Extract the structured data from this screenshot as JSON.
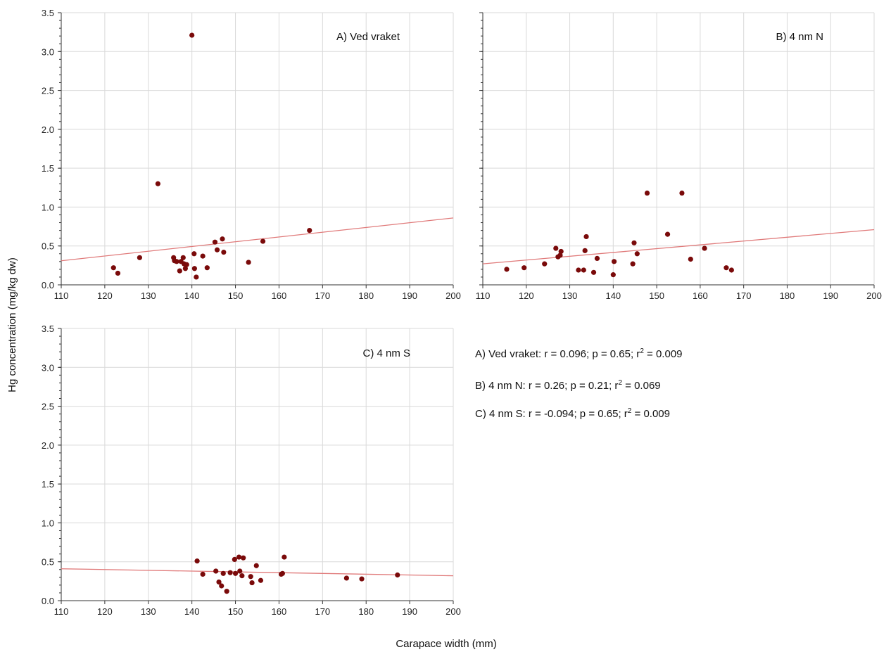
{
  "figure": {
    "y_axis_title": "Hg concentration (mg/kg dw)",
    "x_axis_title": "Carapace width (mm)"
  },
  "stats": {
    "a_prefix": "A) Ved vraket:  r =  0.096; p = 0.65; r",
    "a_suffix": " = 0.009",
    "b_prefix": "B) 4 nm N:  r =  0.26; p = 0.21; r",
    "b_suffix": " = 0.069",
    "c_prefix": "C) 4 nm S:  r = -0.094; p = 0.65; r",
    "c_suffix": " = 0.009",
    "sup": "2"
  },
  "colors": {
    "point": "#7a0a0a",
    "line": "#e07a7a",
    "grid": "#d9d9d9",
    "axis": "#333333"
  },
  "chart_data": [
    {
      "type": "scatter",
      "title": "A) Ved vraket",
      "xlim": [
        110,
        200
      ],
      "ylim": [
        0,
        3.5
      ],
      "x_ticks": [
        "110",
        "120",
        "130",
        "140",
        "150",
        "160",
        "170",
        "180",
        "190",
        "200"
      ],
      "y_ticks": [
        "0.0",
        "0.5",
        "1.0",
        "1.5",
        "2.0",
        "2.5",
        "3.0",
        "3.5"
      ],
      "grid": true,
      "points": [
        [
          122.0,
          0.22
        ],
        [
          123.0,
          0.15
        ],
        [
          128.0,
          0.35
        ],
        [
          132.2,
          1.3
        ],
        [
          135.8,
          0.35
        ],
        [
          136.0,
          0.31
        ],
        [
          136.5,
          0.3
        ],
        [
          137.2,
          0.18
        ],
        [
          137.5,
          0.3
        ],
        [
          138.0,
          0.35
        ],
        [
          138.2,
          0.27
        ],
        [
          138.5,
          0.21
        ],
        [
          138.8,
          0.26
        ],
        [
          140.0,
          3.21
        ],
        [
          140.5,
          0.4
        ],
        [
          140.6,
          0.21
        ],
        [
          141.0,
          0.1
        ],
        [
          142.5,
          0.37
        ],
        [
          143.5,
          0.22
        ],
        [
          145.3,
          0.55
        ],
        [
          145.8,
          0.45
        ],
        [
          147.0,
          0.59
        ],
        [
          147.3,
          0.42
        ],
        [
          153.0,
          0.29
        ],
        [
          156.3,
          0.56
        ],
        [
          167.0,
          0.7
        ]
      ],
      "trend": [
        [
          110,
          0.31
        ],
        [
          200,
          0.86
        ]
      ]
    },
    {
      "type": "scatter",
      "title": "B) 4 nm N",
      "xlim": [
        110,
        200
      ],
      "ylim": [
        0,
        3.5
      ],
      "x_ticks": [
        "110",
        "120",
        "130",
        "140",
        "150",
        "160",
        "170",
        "180",
        "190",
        "200"
      ],
      "grid": true,
      "points": [
        [
          115.5,
          0.2
        ],
        [
          119.5,
          0.22
        ],
        [
          124.2,
          0.27
        ],
        [
          126.8,
          0.47
        ],
        [
          127.3,
          0.36
        ],
        [
          127.8,
          0.38
        ],
        [
          128.0,
          0.43
        ],
        [
          132.0,
          0.19
        ],
        [
          133.2,
          0.19
        ],
        [
          133.5,
          0.44
        ],
        [
          133.8,
          0.62
        ],
        [
          135.5,
          0.16
        ],
        [
          136.3,
          0.34
        ],
        [
          140.0,
          0.13
        ],
        [
          140.2,
          0.3
        ],
        [
          144.5,
          0.27
        ],
        [
          144.8,
          0.54
        ],
        [
          145.5,
          0.4
        ],
        [
          147.8,
          1.18
        ],
        [
          152.5,
          0.65
        ],
        [
          155.8,
          1.18
        ],
        [
          157.8,
          0.33
        ],
        [
          161.0,
          0.47
        ],
        [
          166.0,
          0.22
        ],
        [
          167.2,
          0.19
        ]
      ],
      "trend": [
        [
          110,
          0.27
        ],
        [
          200,
          0.71
        ]
      ]
    },
    {
      "type": "scatter",
      "title": "C) 4 nm S",
      "xlim": [
        110,
        200
      ],
      "ylim": [
        0,
        3.5
      ],
      "x_ticks": [
        "110",
        "120",
        "130",
        "140",
        "150",
        "160",
        "170",
        "180",
        "190",
        "200"
      ],
      "y_ticks": [
        "0.0",
        "0.5",
        "1.0",
        "1.5",
        "2.0",
        "2.5",
        "3.0",
        "3.5"
      ],
      "grid": true,
      "points": [
        [
          141.2,
          0.51
        ],
        [
          142.5,
          0.34
        ],
        [
          145.5,
          0.38
        ],
        [
          146.2,
          0.24
        ],
        [
          146.8,
          0.19
        ],
        [
          147.2,
          0.35
        ],
        [
          148.0,
          0.12
        ],
        [
          148.8,
          0.36
        ],
        [
          149.8,
          0.53
        ],
        [
          150.0,
          0.35
        ],
        [
          150.8,
          0.56
        ],
        [
          151.0,
          0.38
        ],
        [
          151.5,
          0.32
        ],
        [
          151.8,
          0.55
        ],
        [
          153.5,
          0.31
        ],
        [
          153.8,
          0.23
        ],
        [
          154.8,
          0.45
        ],
        [
          155.8,
          0.26
        ],
        [
          160.5,
          0.34
        ],
        [
          160.8,
          0.35
        ],
        [
          161.2,
          0.56
        ],
        [
          175.5,
          0.29
        ],
        [
          179.0,
          0.28
        ],
        [
          187.2,
          0.33
        ]
      ],
      "trend": [
        [
          110,
          0.41
        ],
        [
          200,
          0.32
        ]
      ]
    }
  ]
}
